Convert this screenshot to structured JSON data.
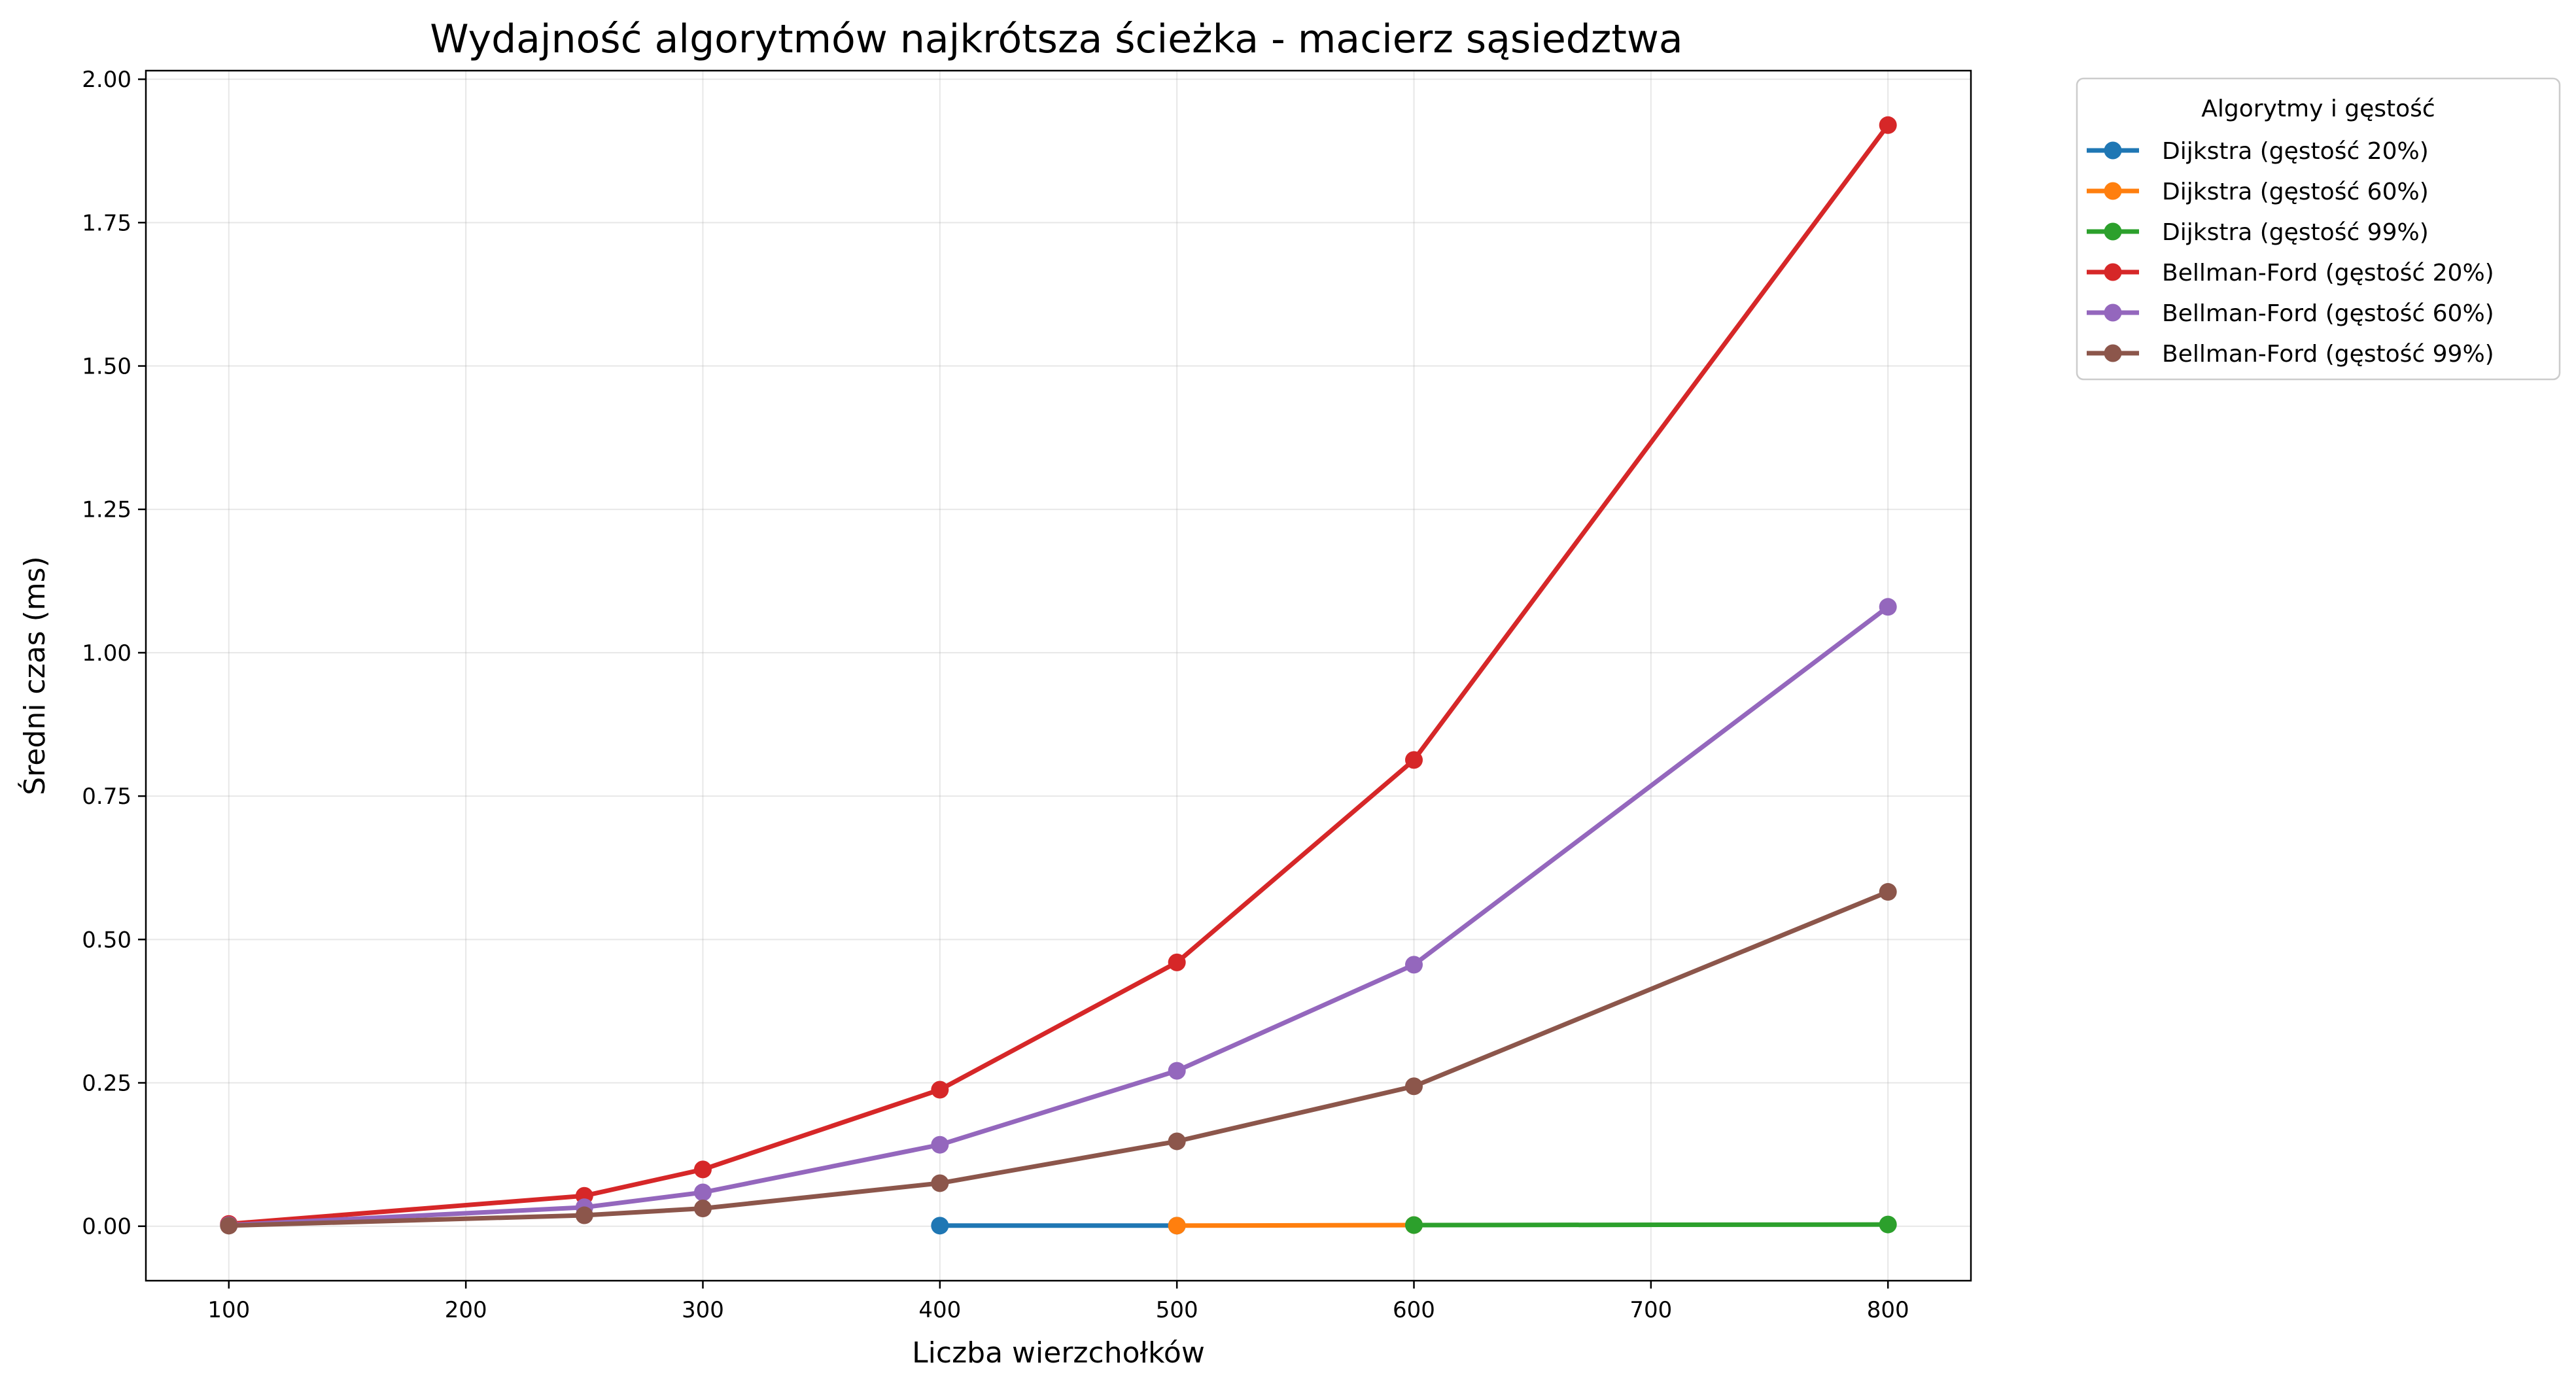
{
  "chart_data": {
    "type": "line",
    "title": "Wydajność algorytmów najkrótsza ścieżka - macierz sąsiedztwa",
    "xlabel": "Liczba wierzchołków",
    "ylabel": "Średni czas (ms)",
    "xlim": [
      65,
      835
    ],
    "ylim": [
      -0.095,
      2.015
    ],
    "xticks": [
      100,
      200,
      300,
      400,
      500,
      600,
      700,
      800
    ],
    "xtick_labels": [
      "100",
      "200",
      "300",
      "400",
      "500",
      "600",
      "700",
      "800"
    ],
    "yticks": [
      0,
      0.25,
      0.5,
      0.75,
      1.0,
      1.25,
      1.5,
      1.75,
      2.0
    ],
    "ytick_labels": [
      "0.00",
      "0.25",
      "0.50",
      "0.75",
      "1.00",
      "1.25",
      "1.50",
      "1.75",
      "2.00"
    ],
    "grid": true,
    "legend": {
      "title": "Algorytmy i gęstość",
      "placement": "outside-top-right"
    },
    "series": [
      {
        "name": "Dijkstra (gęstość 20%)",
        "color": "#1f77b4",
        "x": [
          400,
          500
        ],
        "y": [
          0.001,
          0.001
        ]
      },
      {
        "name": "Dijkstra (gęstość 60%)",
        "color": "#ff7f0e",
        "x": [
          500,
          600
        ],
        "y": [
          0.001,
          0.002
        ]
      },
      {
        "name": "Dijkstra (gęstość 99%)",
        "color": "#2ca02c",
        "x": [
          600,
          800
        ],
        "y": [
          0.002,
          0.003
        ]
      },
      {
        "name": "Bellman-Ford (gęstość 20%)",
        "color": "#d62728",
        "x": [
          100,
          250,
          300,
          400,
          500,
          600,
          800
        ],
        "y": [
          0.004,
          0.053,
          0.099,
          0.238,
          0.46,
          0.813,
          1.92
        ]
      },
      {
        "name": "Bellman-Ford (gęstość 60%)",
        "color": "#9467bd",
        "x": [
          100,
          250,
          300,
          400,
          500,
          600,
          800
        ],
        "y": [
          0.002,
          0.033,
          0.059,
          0.142,
          0.271,
          0.456,
          1.08
        ]
      },
      {
        "name": "Bellman-Ford (gęstość 99%)",
        "color": "#8c564b",
        "x": [
          100,
          250,
          300,
          400,
          500,
          600,
          800
        ],
        "y": [
          0.001,
          0.019,
          0.031,
          0.075,
          0.148,
          0.244,
          0.583
        ]
      }
    ]
  }
}
